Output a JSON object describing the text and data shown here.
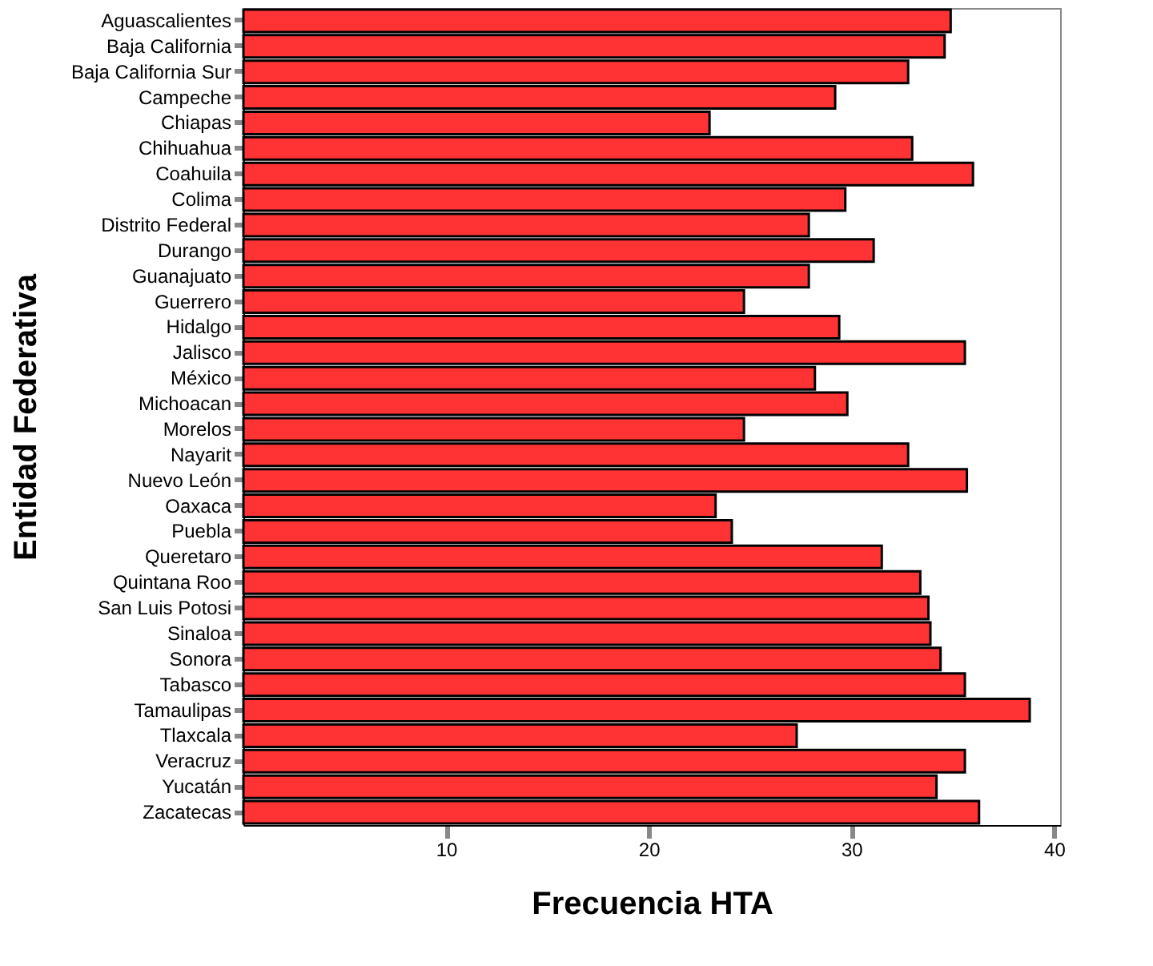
{
  "chart_data": {
    "type": "bar",
    "orientation": "horizontal",
    "xlabel": "Frecuencia HTA",
    "ylabel": "Entidad Federativa",
    "categories": [
      "Aguascalientes",
      "Baja California",
      "Baja California Sur",
      "Campeche",
      "Chiapas",
      "Chihuahua",
      "Coahuila",
      "Colima",
      "Distrito Federal",
      "Durango",
      "Guanajuato",
      "Guerrero",
      "Hidalgo",
      "Jalisco",
      "México",
      "Michoacan",
      "Morelos",
      "Nayarit",
      "Nuevo León",
      "Oaxaca",
      "Puebla",
      "Queretaro",
      "Quintana Roo",
      "San Luis Potosi",
      "Sinaloa",
      "Sonora",
      "Tabasco",
      "Tamaulipas",
      "Tlaxcala",
      "Veracruz",
      "Yucatán",
      "Zacatecas"
    ],
    "values": [
      34.9,
      34.6,
      32.8,
      29.2,
      23.0,
      33.0,
      36.0,
      29.7,
      27.9,
      31.1,
      27.9,
      24.7,
      29.4,
      35.6,
      28.2,
      29.8,
      24.7,
      32.8,
      35.7,
      23.3,
      24.1,
      31.5,
      33.4,
      33.8,
      33.9,
      34.4,
      35.6,
      38.8,
      27.3,
      35.6,
      34.2,
      36.3
    ],
    "color": "#ff3333",
    "xlim": [
      0,
      40.3
    ],
    "xticks": [
      10,
      20,
      30,
      40
    ],
    "grid": false
  }
}
